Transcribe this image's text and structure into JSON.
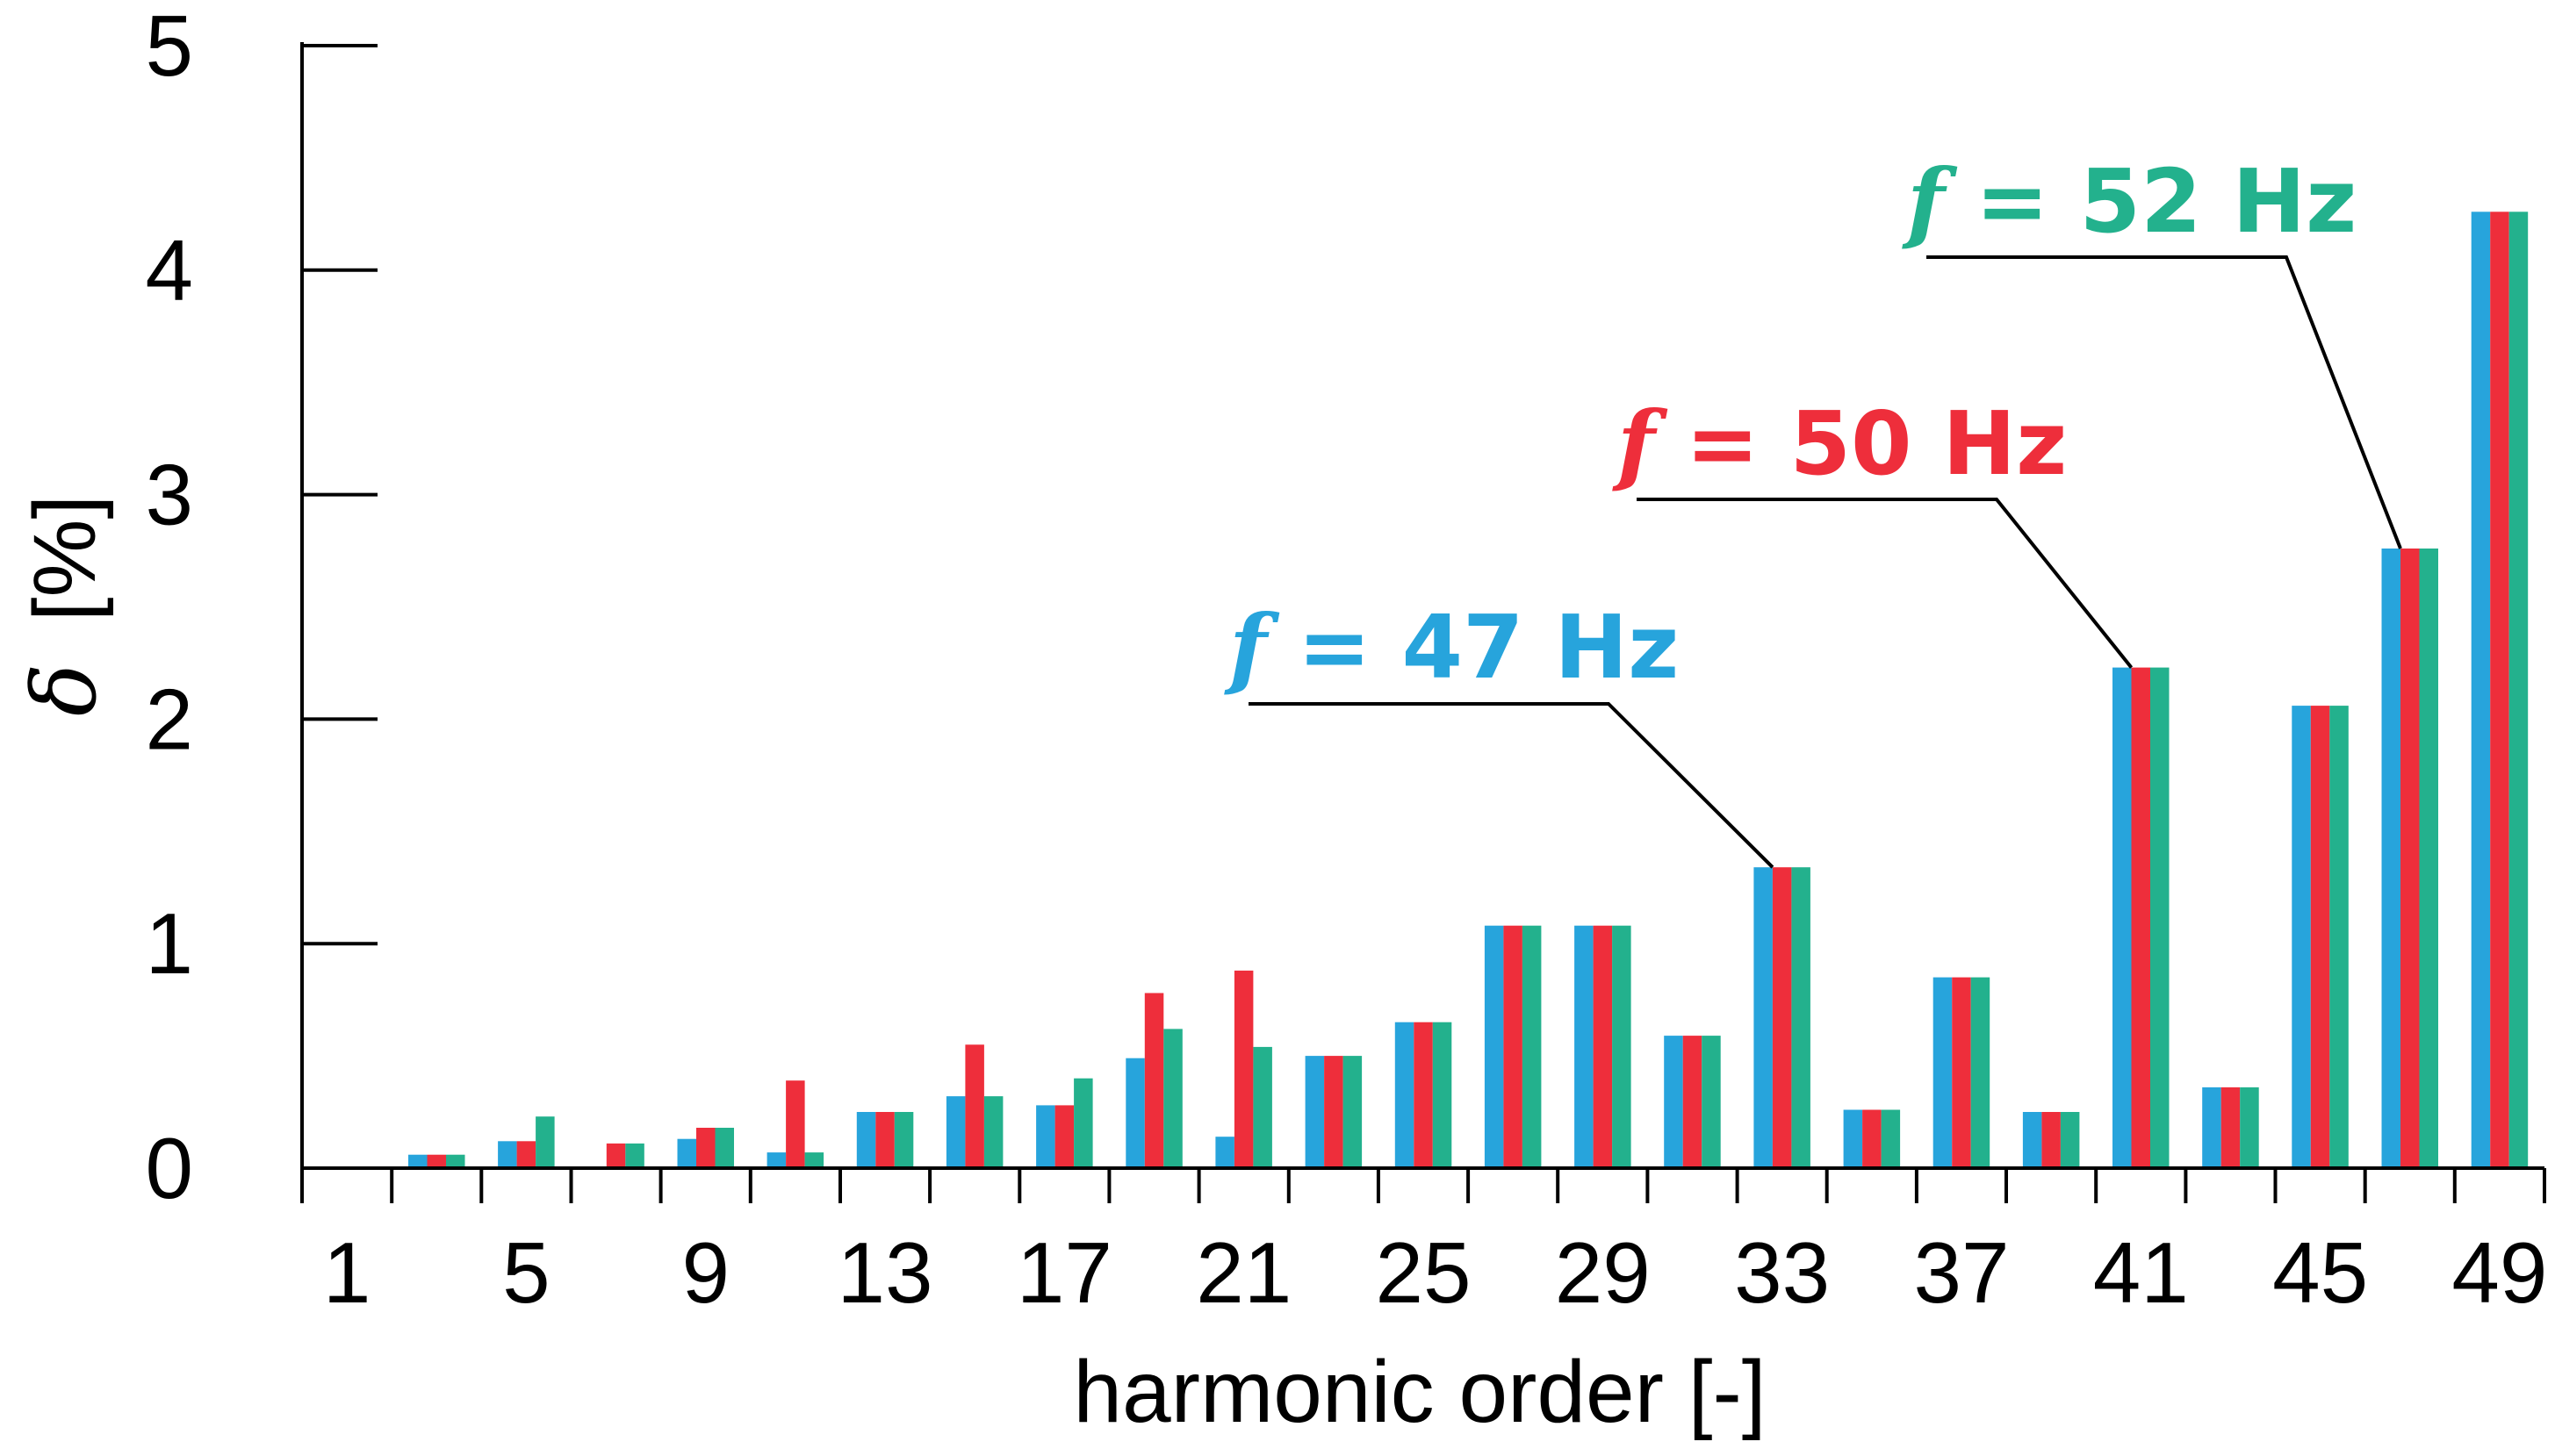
{
  "chart_data": {
    "type": "bar",
    "title": "",
    "xlabel": "harmonic order  [-]",
    "ylabel_symbol": "δ",
    "ylabel_unit": "[%]",
    "ylim": [
      0,
      5
    ],
    "yticks": [
      "0",
      "1",
      "2",
      "3",
      "4",
      "5"
    ],
    "categories": [
      1,
      3,
      5,
      7,
      9,
      11,
      13,
      15,
      17,
      19,
      21,
      23,
      25,
      27,
      29,
      31,
      33,
      35,
      37,
      39,
      41,
      43,
      45,
      47,
      49
    ],
    "xtick_labels": [
      "1",
      "5",
      "9",
      "13",
      "17",
      "21",
      "25",
      "29",
      "33",
      "37",
      "41",
      "45",
      "49"
    ],
    "series": [
      {
        "color": "#27a4dc",
        "values": [
          0,
          0.06,
          0.12,
          0,
          0.13,
          0.07,
          0.25,
          0.32,
          0.28,
          0.49,
          0.14,
          0.5,
          0.65,
          1.08,
          1.08,
          0.59,
          1.34,
          0.26,
          0.85,
          0.25,
          2.23,
          0.36,
          2.06,
          2.76,
          4.26
        ]
      },
      {
        "color": "#ee2e3b",
        "values": [
          0,
          0.06,
          0.12,
          0.11,
          0.18,
          0.39,
          0.25,
          0.55,
          0.28,
          0.78,
          0.88,
          0.5,
          0.65,
          1.08,
          1.08,
          0.59,
          1.34,
          0.26,
          0.85,
          0.25,
          2.23,
          0.36,
          2.06,
          2.76,
          4.26
        ]
      },
      {
        "color": "#23b18d",
        "values": [
          0,
          0.06,
          0.23,
          0.11,
          0.18,
          0.07,
          0.25,
          0.32,
          0.4,
          0.62,
          0.54,
          0.5,
          0.65,
          1.08,
          1.08,
          0.59,
          1.34,
          0.26,
          0.85,
          0.25,
          2.23,
          0.36,
          2.06,
          2.76,
          4.26
        ]
      }
    ],
    "annotations": [
      {
        "f": "f",
        "text": " = 47 Hz",
        "color": "#27a4dc",
        "target_harmonic": 33
      },
      {
        "f": "f",
        "text": " = 50 Hz",
        "color": "#ee2e3b",
        "target_harmonic": 41
      },
      {
        "f": "f",
        "text": " = 52 Hz",
        "color": "#23b18d",
        "target_harmonic": 47
      }
    ],
    "grid": false,
    "legend": "none"
  }
}
